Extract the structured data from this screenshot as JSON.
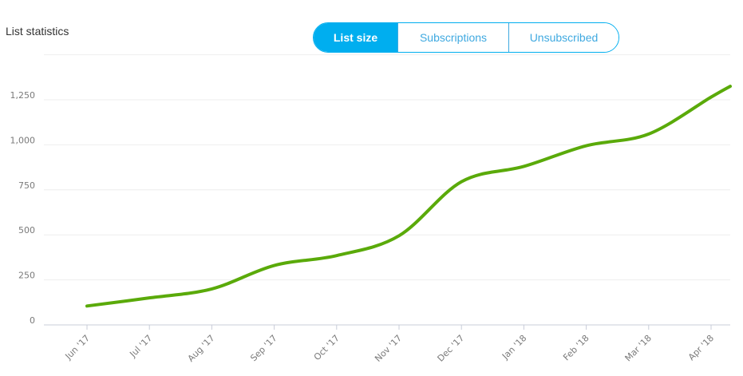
{
  "header": {
    "title": "List statistics"
  },
  "toggle": {
    "options": [
      {
        "label": "List size",
        "active": true
      },
      {
        "label": "Subscriptions",
        "active": false
      },
      {
        "label": "Unsubscribed",
        "active": false
      }
    ]
  },
  "colors": {
    "accent": "#00aeef",
    "line": "#5aaa0a",
    "grid": "#eeeeee",
    "axis": "#c8ccd8",
    "label": "#7a7a7a"
  },
  "chart_data": {
    "type": "line",
    "title": "List statistics",
    "xlabel": "",
    "ylabel": "",
    "categories": [
      "Jun '17",
      "Jul '17",
      "Aug '17",
      "Sep '17",
      "Oct '17",
      "Nov '17",
      "Dec '17",
      "Jan '18",
      "Feb '18",
      "Mar '18",
      "Apr '18"
    ],
    "series": [
      {
        "name": "List size",
        "color": "#5aaa0a",
        "values": [
          105,
          150,
          200,
          330,
          385,
          495,
          795,
          880,
          995,
          1060,
          1265
        ]
      }
    ],
    "trailing_value": 1325,
    "yticks": [
      "0",
      "250",
      "500",
      "750",
      "1,000",
      "1,250"
    ],
    "ylim": [
      0,
      1500
    ],
    "grid": true,
    "legend": "none"
  }
}
